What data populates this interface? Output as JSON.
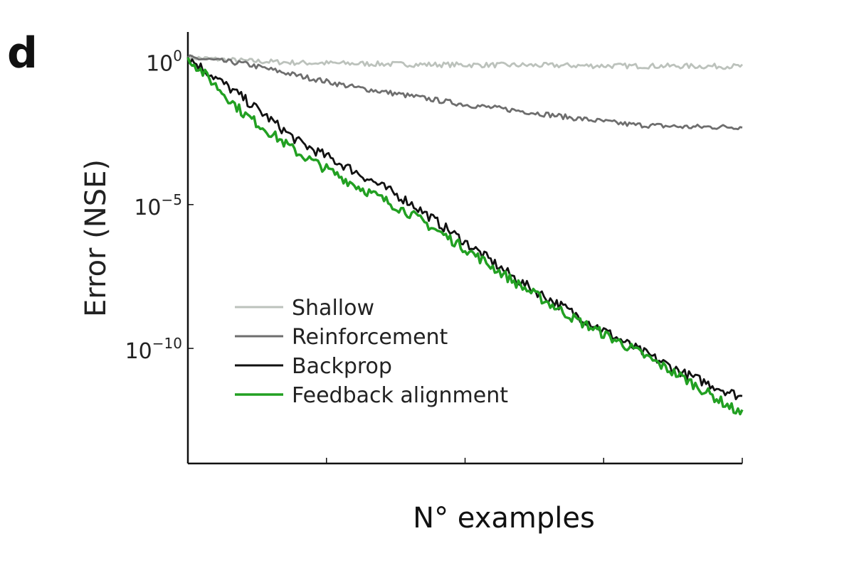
{
  "panel_label": "d",
  "chart_data": {
    "type": "line",
    "xlabel": "N° examples",
    "ylabel": "Error (NSE)",
    "yscale": "log",
    "ylim": [
      1e-14,
      10.0
    ],
    "xlim": [
      0,
      1
    ],
    "y_ticks": [
      {
        "value": 1,
        "label": "10",
        "sup": "0"
      },
      {
        "value": 1e-05,
        "label": "10",
        "sup": "−5"
      },
      {
        "value": 1e-10,
        "label": "10",
        "sup": "−10"
      }
    ],
    "x_ticks": [
      0.25,
      0.5,
      0.75,
      1.0
    ],
    "legend_position": "lower-left",
    "series": [
      {
        "name": "Shallow",
        "color": "#bcc2bc",
        "x": [
          0,
          0.1,
          0.2,
          0.3,
          0.4,
          0.5,
          0.6,
          0.7,
          0.8,
          0.9,
          1.0
        ],
        "values": [
          1.3,
          1.0,
          0.85,
          0.8,
          0.75,
          0.72,
          0.7,
          0.68,
          0.66,
          0.65,
          0.64
        ]
      },
      {
        "name": "Reinforcement",
        "color": "#6e6e6e",
        "x": [
          0,
          0.1,
          0.2,
          0.3,
          0.4,
          0.5,
          0.6,
          0.7,
          0.8,
          0.9,
          1.0
        ],
        "values": [
          1.3,
          0.8,
          0.3,
          0.12,
          0.06,
          0.03,
          0.018,
          0.01,
          0.006,
          0.005,
          0.005
        ]
      },
      {
        "name": "Backprop",
        "color": "#111111",
        "x": [
          0,
          0.1,
          0.2,
          0.3,
          0.4,
          0.5,
          0.6,
          0.7,
          0.8,
          0.9,
          1.0
        ],
        "values": [
          1.3,
          0.05,
          0.0015,
          0.00015,
          1.2e-05,
          5e-07,
          2e-08,
          1.5e-09,
          1.2e-10,
          1.2e-11,
          2e-12
        ]
      },
      {
        "name": "Feedback alignment",
        "color": "#22a022",
        "x": [
          0,
          0.1,
          0.2,
          0.3,
          0.4,
          0.5,
          0.6,
          0.7,
          0.8,
          0.9,
          1.0
        ],
        "values": [
          1.3,
          0.015,
          0.0006,
          5e-05,
          5e-06,
          3e-07,
          1.5e-08,
          1e-09,
          1e-10,
          8e-12,
          5e-13
        ]
      }
    ]
  }
}
